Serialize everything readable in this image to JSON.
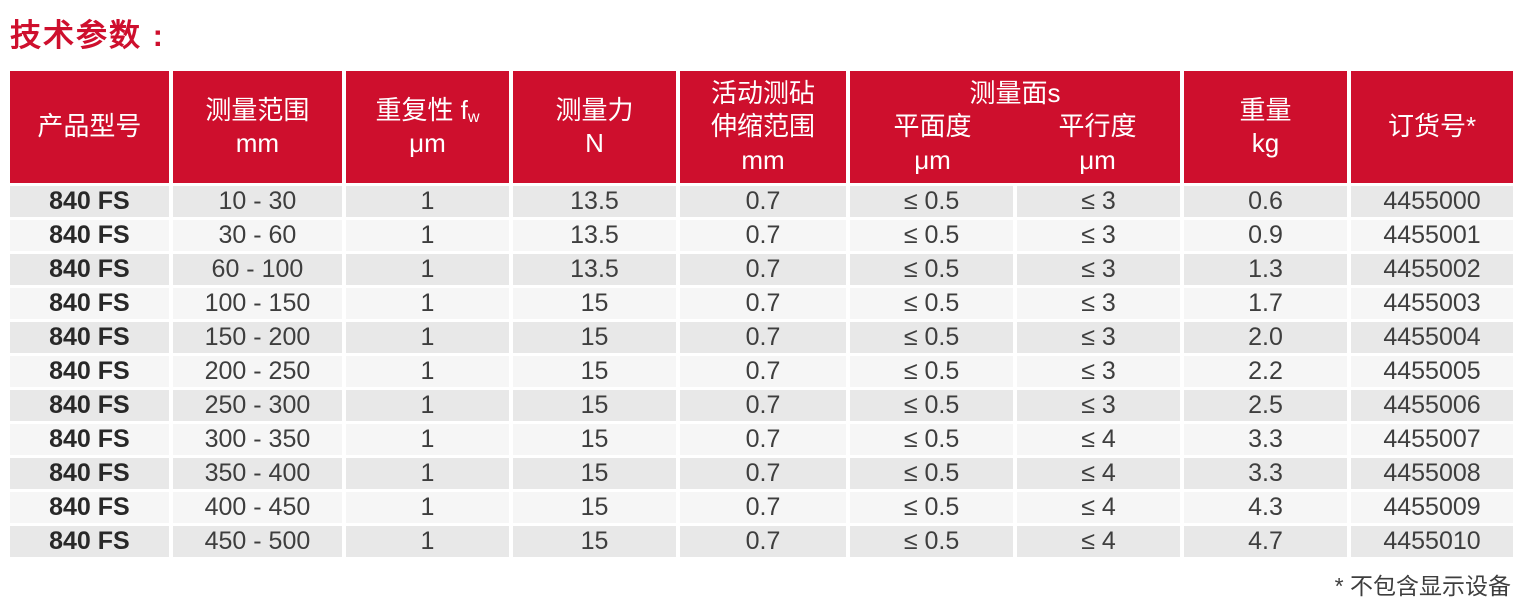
{
  "title": "技术参数 :",
  "accent_color": "#ce0f2d",
  "row_colors": {
    "odd": "#e8e8e8",
    "even": "#f6f6f6"
  },
  "header": {
    "product_model": "产品型号",
    "measuring_range": [
      "测量范围",
      "mm"
    ],
    "repeatability": {
      "prefix": "重复性 f",
      "sub": "w",
      "unit": "μm"
    },
    "measuring_force": [
      "测量力",
      "N"
    ],
    "anvil_range": [
      "活动测砧",
      "伸缩范围",
      "mm"
    ],
    "measuring_faces": {
      "title": "测量面s",
      "flatness": [
        "平面度",
        "μm"
      ],
      "parallelism": [
        "平行度",
        "μm"
      ]
    },
    "weight": [
      "重量",
      "kg"
    ],
    "order_number": "订货号*"
  },
  "table": {
    "col_keys": [
      "product-model",
      "measuring-range",
      "repeatability",
      "measuring-force",
      "anvil-range",
      "flatness",
      "parallelism",
      "weight",
      "order-number"
    ],
    "rows": [
      [
        "840 FS",
        "10 - 30",
        "1",
        "13.5",
        "0.7",
        "≤ 0.5",
        "≤ 3",
        "0.6",
        "4455000"
      ],
      [
        "840 FS",
        "30 - 60",
        "1",
        "13.5",
        "0.7",
        "≤ 0.5",
        "≤ 3",
        "0.9",
        "4455001"
      ],
      [
        "840 FS",
        "60 - 100",
        "1",
        "13.5",
        "0.7",
        "≤ 0.5",
        "≤ 3",
        "1.3",
        "4455002"
      ],
      [
        "840 FS",
        "100 - 150",
        "1",
        "15",
        "0.7",
        "≤ 0.5",
        "≤ 3",
        "1.7",
        "4455003"
      ],
      [
        "840 FS",
        "150 - 200",
        "1",
        "15",
        "0.7",
        "≤ 0.5",
        "≤ 3",
        "2.0",
        "4455004"
      ],
      [
        "840 FS",
        "200 - 250",
        "1",
        "15",
        "0.7",
        "≤ 0.5",
        "≤ 3",
        "2.2",
        "4455005"
      ],
      [
        "840 FS",
        "250 - 300",
        "1",
        "15",
        "0.7",
        "≤ 0.5",
        "≤ 3",
        "2.5",
        "4455006"
      ],
      [
        "840 FS",
        "300 - 350",
        "1",
        "15",
        "0.7",
        "≤ 0.5",
        "≤ 4",
        "3.3",
        "4455007"
      ],
      [
        "840 FS",
        "350 - 400",
        "1",
        "15",
        "0.7",
        "≤ 0.5",
        "≤ 4",
        "3.3",
        "4455008"
      ],
      [
        "840 FS",
        "400 - 450",
        "1",
        "15",
        "0.7",
        "≤ 0.5",
        "≤ 4",
        "4.3",
        "4455009"
      ],
      [
        "840 FS",
        "450 - 500",
        "1",
        "15",
        "0.7",
        "≤ 0.5",
        "≤ 4",
        "4.7",
        "4455010"
      ]
    ]
  },
  "footnote": "* 不包含显示设备"
}
